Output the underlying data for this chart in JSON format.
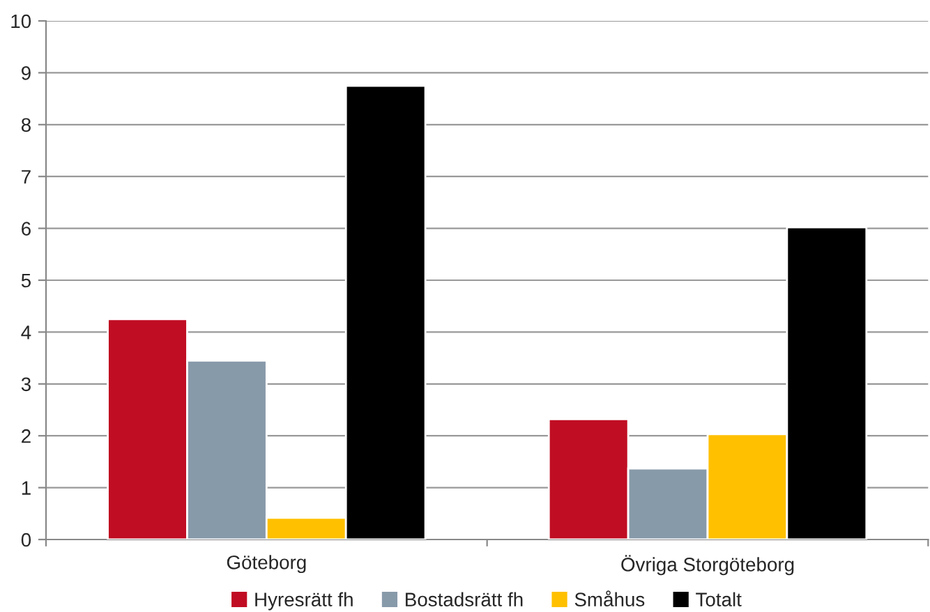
{
  "chart_data": {
    "type": "bar",
    "categories": [
      "Göteborg",
      "Övriga Storgöteborg"
    ],
    "series": [
      {
        "name": "Hyresrätt fh",
        "color": "#c00d23",
        "values": [
          4.25,
          2.32
        ]
      },
      {
        "name": "Bostadsrätt fh",
        "color": "#879aaa",
        "values": [
          3.45,
          1.37
        ]
      },
      {
        "name": "Småhus",
        "color": "#ffc000",
        "values": [
          0.42,
          2.03
        ]
      },
      {
        "name": "Totalt",
        "color": "#000000",
        "values": [
          8.75,
          6.02
        ]
      }
    ],
    "ylim": [
      0,
      10
    ],
    "yticks": [
      0,
      1,
      2,
      3,
      4,
      5,
      6,
      7,
      8,
      9,
      10
    ],
    "grid": "y",
    "legend": "bottom"
  }
}
